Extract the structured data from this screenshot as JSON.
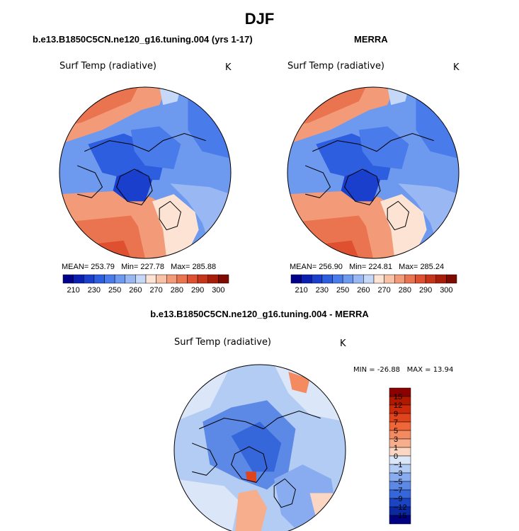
{
  "page_title": "DJF",
  "chart_data": [
    {
      "type": "heatmap",
      "projection": "north-polar-stereographic",
      "title": "b.e13.B1850C5CN.ne120_g16.tuning.004 (yrs 1-17)",
      "variable": "Surf Temp (radiative)",
      "units": "K",
      "stats": {
        "mean_label": "MEAN=",
        "mean": "253.79",
        "min_label": "Min=",
        "min": "227.78",
        "max_label": "Max=",
        "max": "285.88"
      },
      "colorbar_ticks": [
        "210",
        "230",
        "250",
        "260",
        "270",
        "280",
        "290",
        "300"
      ],
      "colorbar_colors": [
        "#00008b",
        "#0a1fb0",
        "#1a3fcc",
        "#2d5ee0",
        "#4a7bea",
        "#6d99ef",
        "#99b8f3",
        "#c6d8f7",
        "#fde3d3",
        "#f9c2a6",
        "#f39a78",
        "#ea7450",
        "#de5030",
        "#c73518",
        "#a81d0a",
        "#7f0b00"
      ]
    },
    {
      "type": "heatmap",
      "projection": "north-polar-stereographic",
      "title": "MERRA",
      "variable": "Surf Temp (radiative)",
      "units": "K",
      "stats": {
        "mean_label": "MEAN=",
        "mean": "256.90",
        "min_label": "Min=",
        "min": "224.81",
        "max_label": "Max=",
        "max": "285.24"
      },
      "colorbar_ticks": [
        "210",
        "230",
        "250",
        "260",
        "270",
        "280",
        "290",
        "300"
      ],
      "colorbar_colors": [
        "#00008b",
        "#0a1fb0",
        "#1a3fcc",
        "#2d5ee0",
        "#4a7bea",
        "#6d99ef",
        "#99b8f3",
        "#c6d8f7",
        "#fde3d3",
        "#f9c2a6",
        "#f39a78",
        "#ea7450",
        "#de5030",
        "#c73518",
        "#a81d0a",
        "#7f0b00"
      ]
    },
    {
      "type": "heatmap",
      "projection": "north-polar-stereographic",
      "title": "b.e13.B1850C5CN.ne120_g16.tuning.004 - MERRA",
      "variable": "Surf Temp (radiative)",
      "units": "K",
      "stats": {
        "min_label": "MIN =",
        "min": "-26.88",
        "max_label": "MAX =",
        "max": "13.94"
      },
      "colorbar_ticks": [
        "15",
        "12",
        "9",
        "7",
        "5",
        "3",
        "1",
        "0",
        "−1",
        "−3",
        "−5",
        "−7",
        "−9",
        "−12",
        "−15"
      ],
      "colorbar_colors": [
        "#8b0000",
        "#b01800",
        "#cc2a0a",
        "#e0441c",
        "#ef6638",
        "#f38a60",
        "#f6ae8c",
        "#fbd7c3",
        "#dbe7f8",
        "#b3ccf4",
        "#88acef",
        "#5c88e6",
        "#3566da",
        "#1a44c4",
        "#0a28a0",
        "#000080"
      ]
    }
  ]
}
